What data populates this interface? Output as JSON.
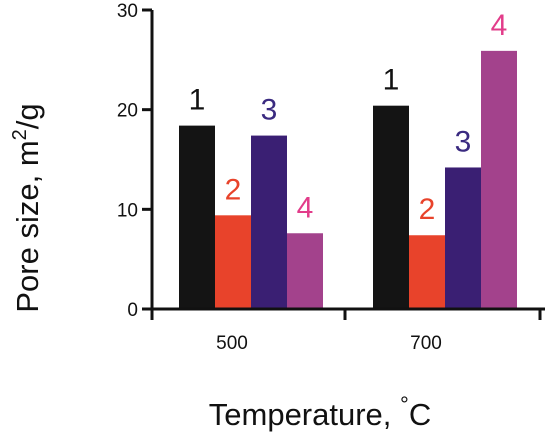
{
  "chart_data": {
    "type": "bar",
    "title": "",
    "xlabel": "Temperature, °C",
    "ylabel": "Pore size, m²/g",
    "xlabel_parts": {
      "main": "Temperature, ",
      "sup": "°",
      "tail": "C"
    },
    "ylabel_parts": {
      "main": "Pore size, m",
      "sup": "2",
      "tail": "/g"
    },
    "categories": [
      "500",
      "700"
    ],
    "ylim": [
      0,
      30
    ],
    "yticks": [
      0,
      10,
      20,
      30
    ],
    "yticks_labels": [
      "0",
      "10",
      "20",
      "30"
    ],
    "grid": false,
    "legend": "none",
    "series": [
      {
        "label": "1",
        "color": "#141414",
        "label_color": "#111111",
        "values": [
          18.4,
          20.4
        ]
      },
      {
        "label": "2",
        "color": "#e8432b",
        "label_color": "#e8432b",
        "values": [
          9.4,
          7.4
        ]
      },
      {
        "label": "3",
        "color": "#3a1f73",
        "label_color": "#3a2a80",
        "values": [
          17.4,
          14.2
        ]
      },
      {
        "label": "4",
        "color": "#a3428c",
        "label_color": "#e23c8a",
        "values": [
          7.6,
          25.9
        ]
      }
    ]
  }
}
